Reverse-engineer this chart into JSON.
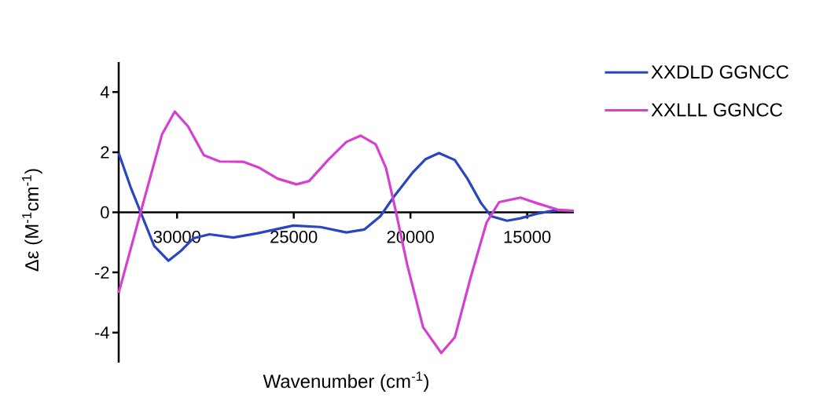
{
  "chart_data": {
    "type": "line",
    "xlabel": "Wavenumber (cm$^{-1}$)",
    "ylabel": "Δε (M$^{-1}$cm$^{-1}$)",
    "xlim": [
      32500,
      13000
    ],
    "ylim": [
      -5,
      5
    ],
    "xticks": [
      30000,
      25000,
      20000,
      15000
    ],
    "yticks": [
      -4,
      -2,
      0,
      2,
      4
    ],
    "legend": "right",
    "marker": "none",
    "line_style": "solid",
    "series": [
      {
        "name": "XXDLD GGNCC",
        "color": "#2a45c0",
        "x": [
          32500,
          32000,
          31560,
          30980,
          30370,
          29860,
          29290,
          28610,
          27590,
          26580,
          25020,
          23860,
          22750,
          21970,
          21290,
          20710,
          19930,
          19350,
          18780,
          18100,
          17560,
          16980,
          16540,
          15860,
          15290,
          14610,
          13700
        ],
        "values": [
          1.97,
          0.86,
          0,
          -1.12,
          -1.61,
          -1.3,
          -0.86,
          -0.73,
          -0.84,
          -0.7,
          -0.44,
          -0.49,
          -0.67,
          -0.57,
          -0.13,
          0.52,
          1.3,
          1.77,
          1.97,
          1.74,
          1.12,
          0.31,
          -0.13,
          -0.28,
          -0.2,
          -0.05,
          0.08
        ]
      },
      {
        "name": "XXLLL GGNCC",
        "color": "#d63fcf",
        "x": [
          32500,
          31560,
          30640,
          30100,
          29530,
          28850,
          28170,
          27150,
          26470,
          25690,
          24880,
          24340,
          23530,
          22750,
          22130,
          21490,
          21050,
          20640,
          20140,
          19460,
          18680,
          18100,
          17420,
          16740,
          16200,
          15290,
          14610,
          13700,
          13000
        ],
        "values": [
          -2.68,
          0,
          2.6,
          3.35,
          2.86,
          1.9,
          1.69,
          1.68,
          1.48,
          1.12,
          0.93,
          1.04,
          1.74,
          2.34,
          2.55,
          2.26,
          1.48,
          0.08,
          -1.74,
          -3.82,
          -4.68,
          -4.16,
          -2.16,
          -0.34,
          0.34,
          0.49,
          0.31,
          0.09,
          0.05
        ]
      }
    ]
  }
}
